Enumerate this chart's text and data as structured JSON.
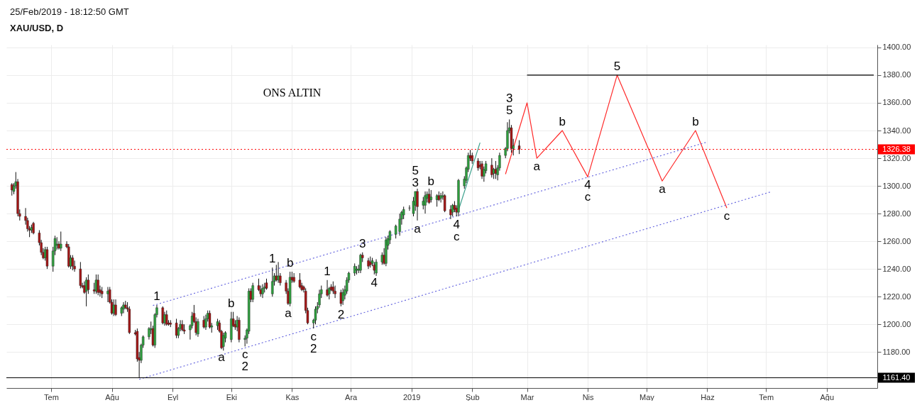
{
  "chart_data": {
    "type": "candlestick",
    "title": "XAU/USD, D",
    "subtitle": "25/Feb/2019 - 18:12:50 GMT",
    "x": [
      "2018-06-11",
      "2018-06-12",
      "2018-06-13",
      "2018-06-14",
      "2018-06-15",
      "2018-06-18",
      "2018-06-19",
      "2018-06-20",
      "2018-06-21",
      "2018-06-22",
      "2018-06-25",
      "2018-06-26",
      "2018-06-27",
      "2018-06-28",
      "2018-06-29",
      "2018-07-02",
      "2018-07-03",
      "2018-07-04",
      "2018-07-05",
      "2018-07-06",
      "2018-07-09",
      "2018-07-10",
      "2018-07-11",
      "2018-07-12",
      "2018-07-13",
      "2018-07-16",
      "2018-07-17",
      "2018-07-18",
      "2018-07-19",
      "2018-07-20",
      "2018-07-23",
      "2018-07-24",
      "2018-07-25",
      "2018-07-26",
      "2018-07-27",
      "2018-07-30",
      "2018-07-31",
      "2018-08-01",
      "2018-08-02",
      "2018-08-03",
      "2018-08-06",
      "2018-08-07",
      "2018-08-08",
      "2018-08-09",
      "2018-08-10",
      "2018-08-13",
      "2018-08-14",
      "2018-08-15",
      "2018-08-16",
      "2018-08-17",
      "2018-08-20",
      "2018-08-21",
      "2018-08-22",
      "2018-08-23",
      "2018-08-24",
      "2018-08-27",
      "2018-08-28",
      "2018-08-29",
      "2018-08-30",
      "2018-08-31",
      "2018-09-03",
      "2018-09-04",
      "2018-09-05",
      "2018-09-06",
      "2018-09-07",
      "2018-09-10",
      "2018-09-11",
      "2018-09-12",
      "2018-09-13",
      "2018-09-14",
      "2018-09-17",
      "2018-09-18",
      "2018-09-19",
      "2018-09-20",
      "2018-09-21",
      "2018-09-24",
      "2018-09-25",
      "2018-09-26",
      "2018-09-27",
      "2018-09-28",
      "2018-10-01",
      "2018-10-02",
      "2018-10-03",
      "2018-10-04",
      "2018-10-05",
      "2018-10-08",
      "2018-10-09",
      "2018-10-10",
      "2018-10-11",
      "2018-10-12",
      "2018-10-15",
      "2018-10-16",
      "2018-10-17",
      "2018-10-18",
      "2018-10-19",
      "2018-10-22",
      "2018-10-23",
      "2018-10-24",
      "2018-10-25",
      "2018-10-26",
      "2018-10-29",
      "2018-10-30",
      "2018-10-31",
      "2018-11-01",
      "2018-11-02",
      "2018-11-05",
      "2018-11-06",
      "2018-11-07",
      "2018-11-08",
      "2018-11-09",
      "2018-11-12",
      "2018-11-13",
      "2018-11-14",
      "2018-11-15",
      "2018-11-16",
      "2018-11-19",
      "2018-11-20",
      "2018-11-21",
      "2018-11-22",
      "2018-11-23",
      "2018-11-26",
      "2018-11-27",
      "2018-11-28",
      "2018-11-29",
      "2018-11-30",
      "2018-12-03",
      "2018-12-04",
      "2018-12-05",
      "2018-12-06",
      "2018-12-07",
      "2018-12-10",
      "2018-12-11",
      "2018-12-12",
      "2018-12-13",
      "2018-12-14",
      "2018-12-17",
      "2018-12-18",
      "2018-12-19",
      "2018-12-20",
      "2018-12-21",
      "2018-12-24",
      "2018-12-26",
      "2018-12-27",
      "2018-12-28",
      "2018-12-31",
      "2019-01-02",
      "2019-01-03",
      "2019-01-04",
      "2019-01-07",
      "2019-01-08",
      "2019-01-09",
      "2019-01-10",
      "2019-01-11",
      "2019-01-14",
      "2019-01-15",
      "2019-01-16",
      "2019-01-17",
      "2019-01-18",
      "2019-01-21",
      "2019-01-22",
      "2019-01-23",
      "2019-01-24",
      "2019-01-25",
      "2019-01-28",
      "2019-01-29",
      "2019-01-30",
      "2019-01-31",
      "2019-02-01",
      "2019-02-04",
      "2019-02-05",
      "2019-02-06",
      "2019-02-07",
      "2019-02-08",
      "2019-02-11",
      "2019-02-12",
      "2019-02-13",
      "2019-02-14",
      "2019-02-15",
      "2019-02-18",
      "2019-02-19",
      "2019-02-20",
      "2019-02-21",
      "2019-02-22",
      "2019-02-25"
    ],
    "ohlc": [
      [
        1301,
        1302,
        1293,
        1297
      ],
      [
        1296,
        1302,
        1294,
        1300
      ],
      [
        1300,
        1310,
        1298,
        1303
      ],
      [
        1303,
        1305,
        1278,
        1280
      ],
      [
        1280,
        1283,
        1275,
        1278
      ],
      [
        1278,
        1284,
        1272,
        1275
      ],
      [
        1275,
        1277,
        1267,
        1269
      ],
      [
        1269,
        1271,
        1263,
        1268
      ],
      [
        1268,
        1272,
        1266,
        1270
      ],
      [
        1273,
        1274,
        1265,
        1266
      ],
      [
        1266,
        1268,
        1257,
        1259
      ],
      [
        1259,
        1261,
        1250,
        1252
      ],
      [
        1252,
        1255,
        1247,
        1248
      ],
      [
        1248,
        1256,
        1246,
        1254
      ],
      [
        1254,
        1256,
        1240,
        1242
      ],
      [
        1242,
        1256,
        1238,
        1253
      ],
      [
        1253,
        1264,
        1250,
        1262
      ],
      [
        1257,
        1263,
        1254,
        1258
      ],
      [
        1258,
        1260,
        1254,
        1255
      ],
      [
        1255,
        1267,
        1253,
        1258
      ],
      [
        1258,
        1260,
        1255,
        1256
      ],
      [
        1256,
        1258,
        1241,
        1242
      ],
      [
        1242,
        1250,
        1240,
        1248
      ],
      [
        1248,
        1250,
        1239,
        1242
      ],
      [
        1242,
        1246,
        1238,
        1240
      ],
      [
        1240,
        1245,
        1226,
        1228
      ],
      [
        1228,
        1230,
        1226,
        1227
      ],
      [
        1228,
        1231,
        1222,
        1223
      ],
      [
        1224,
        1234,
        1213,
        1232
      ],
      [
        1232,
        1236,
        1222,
        1225
      ],
      [
        1225,
        1230,
        1222,
        1224
      ],
      [
        1224,
        1236,
        1222,
        1232
      ],
      [
        1232,
        1236,
        1221,
        1223
      ],
      [
        1225,
        1228,
        1220,
        1223
      ],
      [
        1224,
        1227,
        1219,
        1222
      ],
      [
        1222,
        1227,
        1216,
        1224
      ],
      [
        1225,
        1227,
        1215,
        1216
      ],
      [
        1216,
        1218,
        1207,
        1208
      ],
      [
        1208,
        1218,
        1206,
        1214
      ],
      [
        1214,
        1218,
        1206,
        1207
      ],
      [
        1208,
        1213,
        1206,
        1212
      ],
      [
        1211,
        1216,
        1208,
        1214
      ],
      [
        1214,
        1217,
        1211,
        1212
      ],
      [
        1212,
        1216,
        1209,
        1211
      ],
      [
        1211,
        1213,
        1193,
        1194
      ],
      [
        1194,
        1196,
        1192,
        1193
      ],
      [
        1195,
        1197,
        1173,
        1175
      ],
      [
        1176,
        1180,
        1161.4,
        1174
      ],
      [
        1174,
        1186,
        1172,
        1185
      ],
      [
        1185,
        1192,
        1183,
        1191
      ],
      [
        1191,
        1198,
        1189,
        1197
      ],
      [
        1196,
        1202,
        1193,
        1197
      ],
      [
        1197,
        1199,
        1184,
        1185
      ],
      [
        1185,
        1208,
        1183,
        1207
      ],
      [
        1207,
        1214,
        1205,
        1212
      ],
      [
        1212,
        1213,
        1200,
        1201
      ],
      [
        1201,
        1209,
        1199,
        1207
      ],
      [
        1207,
        1210,
        1199,
        1200
      ],
      [
        1201,
        1203,
        1199,
        1200
      ],
      [
        1201,
        1203,
        1198,
        1200
      ],
      [
        1201,
        1204,
        1190,
        1192
      ],
      [
        1192,
        1198,
        1190,
        1197
      ],
      [
        1197,
        1203,
        1195,
        1200
      ],
      [
        1200,
        1203,
        1195,
        1196
      ],
      [
        1196,
        1200,
        1193,
        1195
      ],
      [
        1196,
        1200,
        1189,
        1199
      ],
      [
        1199,
        1209,
        1197,
        1206
      ],
      [
        1208,
        1214,
        1201,
        1202
      ],
      [
        1202,
        1205,
        1192,
        1194
      ],
      [
        1193,
        1204,
        1191,
        1202
      ],
      [
        1203,
        1206,
        1197,
        1198
      ],
      [
        1198,
        1207,
        1196,
        1204
      ],
      [
        1204,
        1210,
        1202,
        1208
      ],
      [
        1208,
        1210,
        1197,
        1198
      ],
      [
        1198,
        1201,
        1194,
        1199
      ],
      [
        1199,
        1204,
        1196,
        1202
      ],
      [
        1201,
        1203,
        1194,
        1195
      ],
      [
        1195,
        1196,
        1182,
        1183
      ],
      [
        1184,
        1194,
        1181,
        1192
      ],
      [
        1190,
        1195,
        1187,
        1194
      ],
      [
        1189,
        1209,
        1187,
        1204
      ],
      [
        1204,
        1209,
        1198,
        1199
      ],
      [
        1200,
        1203,
        1196,
        1198
      ],
      [
        1198,
        1206,
        1195,
        1203
      ],
      [
        1203,
        1205,
        1187,
        1189
      ],
      [
        1189,
        1192,
        1184,
        1190
      ],
      [
        1190,
        1197,
        1186,
        1196
      ],
      [
        1195,
        1226,
        1193,
        1224
      ],
      [
        1224,
        1226,
        1216,
        1218
      ],
      [
        1218,
        1230,
        1216,
        1228
      ],
      [
        1228,
        1233,
        1224,
        1225
      ],
      [
        1225,
        1228,
        1220,
        1222
      ],
      [
        1222,
        1229,
        1219,
        1226
      ],
      [
        1226,
        1230,
        1223,
        1227
      ],
      [
        1230,
        1233,
        1225,
        1226
      ],
      [
        1222,
        1241,
        1220,
        1231
      ],
      [
        1231,
        1237,
        1228,
        1235
      ],
      [
        1235,
        1243,
        1231,
        1232
      ],
      [
        1232,
        1245,
        1230,
        1235
      ],
      [
        1235,
        1237,
        1228,
        1230
      ],
      [
        1230,
        1232,
        1222,
        1224
      ],
      [
        1224,
        1226,
        1214,
        1215
      ],
      [
        1215,
        1238,
        1213,
        1234
      ],
      [
        1234,
        1238,
        1230,
        1232
      ],
      [
        1234,
        1237,
        1230,
        1231
      ],
      [
        1232,
        1237,
        1226,
        1227
      ],
      [
        1228,
        1230,
        1224,
        1225
      ],
      [
        1227,
        1228,
        1223,
        1225
      ],
      [
        1224,
        1226,
        1208,
        1210
      ],
      [
        1210,
        1212,
        1200,
        1201
      ],
      [
        1201,
        1204,
        1197,
        1203
      ],
      [
        1203,
        1213,
        1200,
        1211
      ],
      [
        1211,
        1216,
        1208,
        1213
      ],
      [
        1214,
        1225,
        1212,
        1222
      ],
      [
        1222,
        1228,
        1219,
        1225
      ],
      [
        1225,
        1232,
        1220,
        1221
      ],
      [
        1222,
        1227,
        1218,
        1226
      ],
      [
        1227,
        1229,
        1224,
        1225
      ],
      [
        1227,
        1231,
        1222,
        1224
      ],
      [
        1224,
        1228,
        1219,
        1222
      ],
      [
        1223,
        1225,
        1213,
        1215
      ],
      [
        1217,
        1226,
        1214,
        1223
      ],
      [
        1221,
        1228,
        1218,
        1225
      ],
      [
        1224,
        1234,
        1222,
        1232
      ],
      [
        1232,
        1238,
        1230,
        1237
      ],
      [
        1237,
        1244,
        1235,
        1242
      ],
      [
        1239,
        1242,
        1236,
        1240
      ],
      [
        1239,
        1243,
        1237,
        1240
      ],
      [
        1239,
        1251,
        1237,
        1250
      ],
      [
        1250,
        1252,
        1245,
        1248
      ],
      [
        1246,
        1248,
        1240,
        1242
      ],
      [
        1245,
        1249,
        1241,
        1243
      ],
      [
        1244,
        1248,
        1242,
        1246
      ],
      [
        1243,
        1245,
        1236,
        1239
      ],
      [
        1237,
        1247,
        1235,
        1245
      ],
      [
        1245,
        1252,
        1243,
        1250
      ],
      [
        1250,
        1255,
        1243,
        1244
      ],
      [
        1244,
        1263,
        1242,
        1261
      ],
      [
        1257,
        1264,
        1254,
        1262
      ],
      [
        1261,
        1268,
        1258,
        1267
      ],
      [
        1265,
        1272,
        1262,
        1271
      ],
      [
        1267,
        1280,
        1264,
        1276
      ],
      [
        1276,
        1282,
        1272,
        1281
      ],
      [
        1279,
        1285,
        1276,
        1283
      ],
      [
        1284,
        1286,
        1282,
        1284
      ],
      [
        1280,
        1292,
        1278,
        1289
      ],
      [
        1286,
        1296,
        1282,
        1296
      ],
      [
        1296,
        1298,
        1275,
        1285
      ],
      [
        1286,
        1292,
        1283,
        1289
      ],
      [
        1286,
        1296,
        1280,
        1293
      ],
      [
        1291,
        1296,
        1288,
        1294
      ],
      [
        1294,
        1298,
        1287,
        1288
      ],
      [
        1290,
        1297,
        1288,
        1292
      ],
      [
        1290,
        1294,
        1285,
        1293
      ],
      [
        1293,
        1296,
        1289,
        1290
      ],
      [
        1291,
        1295,
        1288,
        1293
      ],
      [
        1292,
        1296,
        1290,
        1293
      ],
      [
        1293,
        1294,
        1281,
        1282
      ],
      [
        1283,
        1286,
        1276,
        1279
      ],
      [
        1281,
        1287,
        1278,
        1286
      ],
      [
        1286,
        1289,
        1281,
        1283
      ],
      [
        1284,
        1286,
        1278,
        1281
      ],
      [
        1281,
        1305,
        1278,
        1304
      ],
      [
        1300,
        1307,
        1298,
        1305
      ],
      [
        1304,
        1314,
        1302,
        1313
      ],
      [
        1312,
        1324,
        1310,
        1322
      ],
      [
        1322,
        1326,
        1318,
        1320
      ],
      [
        1322,
        1324,
        1316,
        1318
      ],
      [
        1318,
        1320,
        1311,
        1313
      ],
      [
        1315,
        1318,
        1312,
        1314
      ],
      [
        1316,
        1318,
        1305,
        1307
      ],
      [
        1307,
        1314,
        1303,
        1312
      ],
      [
        1311,
        1318,
        1309,
        1316
      ],
      [
        1315,
        1320,
        1306,
        1308
      ],
      [
        1309,
        1313,
        1305,
        1312
      ],
      [
        1312,
        1318,
        1305,
        1309
      ],
      [
        1308,
        1315,
        1304,
        1313
      ],
      [
        1313,
        1324,
        1311,
        1322
      ],
      [
        1322,
        1328,
        1320,
        1327
      ],
      [
        1327,
        1346,
        1325,
        1340
      ],
      [
        1340,
        1348,
        1338,
        1342
      ],
      [
        1342,
        1344,
        1324,
        1327
      ],
      [
        1327,
        1334,
        1322,
        1329
      ],
      [
        1329,
        1333,
        1323,
        1326.38
      ]
    ],
    "xlim": [
      "2018-06-10",
      "2019-08-25"
    ],
    "xticks": [
      {
        "value": "2018-07-01",
        "label": "Tem"
      },
      {
        "value": "2018-08-01",
        "label": "Ağu"
      },
      {
        "value": "2018-09-01",
        "label": "Eyl"
      },
      {
        "value": "2018-10-01",
        "label": "Eki"
      },
      {
        "value": "2018-11-01",
        "label": "Kas"
      },
      {
        "value": "2018-12-01",
        "label": "Ara"
      },
      {
        "value": "2019-01-01",
        "label": "2019"
      },
      {
        "value": "2019-02-01",
        "label": "Şub"
      },
      {
        "value": "2019-03-01",
        "label": "Mar"
      },
      {
        "value": "2019-04-01",
        "label": "Nis"
      },
      {
        "value": "2019-05-01",
        "label": "May"
      },
      {
        "value": "2019-06-01",
        "label": "Haz"
      },
      {
        "value": "2019-07-01",
        "label": "Tem"
      },
      {
        "value": "2019-08-01",
        "label": "Ağu"
      }
    ],
    "ylim": [
      1154,
      1402
    ],
    "yticks": [
      {
        "value": 1180,
        "label": "1180.00"
      },
      {
        "value": 1200,
        "label": "1200.00"
      },
      {
        "value": 1220,
        "label": "1220.00"
      },
      {
        "value": 1240,
        "label": "1240.00"
      },
      {
        "value": 1260,
        "label": "1260.00"
      },
      {
        "value": 1280,
        "label": "1280.00"
      },
      {
        "value": 1300,
        "label": "1300.00"
      },
      {
        "value": 1320,
        "label": "1320.00"
      },
      {
        "value": 1340,
        "label": "1340.00"
      },
      {
        "value": 1360,
        "label": "1360.00"
      },
      {
        "value": 1380,
        "label": "1380.00"
      },
      {
        "value": 1400,
        "label": "1400.00"
      }
    ],
    "grid": true,
    "ref_lines": [
      {
        "axis": "y",
        "value": 1326.38,
        "label": "1326.38",
        "color": "#ff0000",
        "line_style": "dotted"
      },
      {
        "axis": "y",
        "value": 1161.4,
        "label": "1161.40",
        "color": "#000000",
        "line_style": "solid"
      }
    ],
    "series": [
      {
        "type": "line",
        "color": "#ff2a2a",
        "line_style": "solid",
        "x": [
          "2019-02-18",
          "2019-03-01",
          "2019-03-06",
          "2019-03-19",
          "2019-04-01",
          "2019-04-16",
          "2019-05-09",
          "2019-05-26",
          "2019-06-11"
        ],
        "values": [
          1308.5,
          1360,
          1320,
          1340,
          1306.5,
          1380,
          1303.5,
          1340,
          1284
        ]
      },
      {
        "type": "line",
        "color": "#6a6ae0",
        "line_style": "dotted",
        "x": [
          "2018-08-22",
          "2019-06-01"
        ],
        "values": [
          1213.6,
          1331.7
        ]
      },
      {
        "type": "line",
        "color": "#6a6ae0",
        "line_style": "dotted",
        "x": [
          "2018-08-15",
          "2019-07-03"
        ],
        "values": [
          1160.3,
          1295.5
        ]
      },
      {
        "type": "line",
        "color": "#3aa08c",
        "line_style": "solid",
        "x": [
          "2019-01-25",
          "2019-02-05"
        ],
        "values": [
          1282.4,
          1331.2
        ]
      },
      {
        "type": "line",
        "color": "#000000",
        "line_style": "solid",
        "x": [
          "2019-03-01",
          "2019-08-25"
        ],
        "values": [
          1380,
          1380
        ]
      }
    ],
    "annotations": [
      "ONS ALTIN",
      {
        "text": "1",
        "x": "2018-08-24",
        "y": 1214
      },
      {
        "text": "a",
        "x": "2018-09-26",
        "y": 1182
      },
      {
        "text": "b",
        "x": "2018-10-01",
        "y": 1209
      },
      {
        "text": "c",
        "x": "2018-10-08",
        "y": 1184
      },
      {
        "text": "2",
        "x": "2018-10-08",
        "y": 1184
      },
      {
        "text": "1",
        "x": "2018-10-22",
        "y": 1241
      },
      {
        "text": "a",
        "x": "2018-10-30",
        "y": 1214
      },
      {
        "text": "b",
        "x": "2018-10-31",
        "y": 1238
      },
      {
        "text": "1",
        "x": "2018-11-19",
        "y": 1232
      },
      {
        "text": "c",
        "x": "2018-11-12",
        "y": 1197
      },
      {
        "text": "2",
        "x": "2018-11-12",
        "y": 1197
      },
      {
        "text": "2",
        "x": "2018-11-26",
        "y": 1213
      },
      {
        "text": "3",
        "x": "2018-12-07",
        "y": 1252
      },
      {
        "text": "4",
        "x": "2018-12-13",
        "y": 1236
      },
      {
        "text": "3",
        "x": "2019-01-03",
        "y": 1296
      },
      {
        "text": "5",
        "x": "2019-01-03",
        "y": 1296
      },
      {
        "text": "b",
        "x": "2019-01-11",
        "y": 1297
      },
      {
        "text": "a",
        "x": "2019-01-04",
        "y": 1275
      },
      {
        "text": "4",
        "x": "2019-01-24",
        "y": 1278
      },
      {
        "text": "c",
        "x": "2019-01-24",
        "y": 1278
      },
      {
        "text": "5",
        "x": "2019-02-20",
        "y": 1348
      },
      {
        "text": "3",
        "x": "2019-02-20",
        "y": 1348
      },
      {
        "text": "a",
        "x": "2019-03-06",
        "y": 1320
      },
      {
        "text": "b",
        "x": "2019-03-19",
        "y": 1340
      },
      {
        "text": "4",
        "x": "2019-04-01",
        "y": 1306.5
      },
      {
        "text": "c",
        "x": "2019-04-01",
        "y": 1306.5
      },
      {
        "text": "5",
        "x": "2019-04-16",
        "y": 1380
      },
      {
        "text": "a",
        "x": "2019-05-09",
        "y": 1303.5
      },
      {
        "text": "b",
        "x": "2019-05-26",
        "y": 1340
      },
      {
        "text": "c",
        "x": "2019-06-11",
        "y": 1284
      }
    ]
  }
}
